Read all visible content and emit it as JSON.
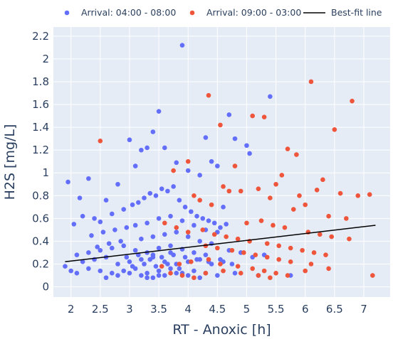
{
  "chart_data": {
    "type": "scatter",
    "title": "",
    "xlabel": "RT - Anoxic [h]",
    "ylabel": "H2S [mg/L]",
    "xlim": [
      1.7,
      7.45
    ],
    "ylim": [
      -0.09,
      2.28
    ],
    "x_ticks": [
      2,
      2.5,
      3,
      3.5,
      4,
      4.5,
      5,
      5.5,
      6,
      6.5,
      7
    ],
    "y_ticks": [
      0,
      0.2,
      0.4,
      0.6,
      0.8,
      1,
      1.2,
      1.4,
      1.6,
      1.8,
      2,
      2.2
    ],
    "grid": true,
    "legend_position": "top",
    "colors": {
      "series_a": "#636efa",
      "series_b": "#ef553b",
      "fit": "#000000",
      "plot_bg": "#e5ecf6",
      "grid": "#ffffff",
      "text": "#2a3f5f"
    },
    "series": [
      {
        "name": "Arrival: 04:00 - 08:00",
        "kind": "markers",
        "x": [
          3.9,
          3.5,
          4.7,
          5.4,
          4.3,
          3.0,
          3.3,
          3.2,
          3.6,
          4.4,
          4.5,
          4.8,
          3.4,
          1.95,
          2.3,
          3.8,
          3.1,
          4.0,
          2.6,
          2.8,
          5.0,
          4.2,
          5.05,
          4.6,
          2.05,
          2.15,
          2.2,
          2.4,
          2.5,
          2.7,
          2.9,
          3.05,
          3.15,
          3.25,
          3.35,
          3.45,
          3.55,
          3.65,
          3.75,
          3.85,
          3.95,
          4.05,
          4.15,
          4.25,
          4.35,
          4.45,
          4.55,
          4.65,
          2.35,
          2.55,
          2.75,
          2.95,
          3.1,
          3.3,
          3.5,
          3.7,
          3.9,
          4.1,
          4.3,
          4.5,
          2.45,
          2.65,
          2.85,
          3.2,
          3.4,
          3.6,
          3.8,
          4.0,
          4.2,
          4.4,
          2.1,
          2.3,
          2.5,
          2.7,
          2.9,
          3.1,
          3.3,
          3.5,
          3.7,
          3.9,
          4.1,
          4.3,
          4.7,
          4.9,
          5.1,
          5.3,
          2.2,
          2.4,
          2.6,
          2.8,
          3.0,
          3.2,
          3.4,
          3.6,
          3.8,
          4.0,
          4.2,
          4.4,
          4.6,
          1.9,
          2.0,
          2.1,
          2.3,
          2.5,
          2.7,
          2.9,
          3.1,
          3.3,
          3.5,
          3.7,
          3.9,
          4.1,
          4.3,
          4.5,
          4.8,
          5.2,
          5.75,
          2.6,
          2.8,
          3.0,
          3.2,
          3.4,
          3.6,
          3.8,
          4.0,
          4.2,
          3.05,
          3.25,
          3.45,
          3.65,
          3.85,
          2.95,
          3.15,
          3.35,
          3.55,
          3.75,
          3.95,
          4.15,
          4.35,
          4.55,
          4.75,
          3.5,
          3.3,
          3.7,
          3.4
        ],
        "y": [
          2.12,
          1.54,
          1.51,
          1.67,
          1.31,
          1.29,
          1.22,
          1.2,
          1.22,
          1.1,
          1.06,
          1.3,
          1.36,
          0.92,
          0.95,
          1.09,
          1.06,
          1.02,
          0.76,
          0.9,
          1.24,
          0.98,
          1.17,
          0.7,
          0.55,
          0.78,
          0.62,
          0.6,
          0.57,
          0.64,
          0.68,
          0.72,
          0.74,
          0.78,
          0.82,
          0.8,
          0.86,
          0.84,
          0.88,
          0.76,
          0.7,
          0.66,
          0.62,
          0.6,
          0.58,
          0.56,
          0.52,
          0.55,
          0.45,
          0.48,
          0.5,
          0.52,
          0.54,
          0.56,
          0.6,
          0.62,
          0.58,
          0.54,
          0.5,
          0.48,
          0.35,
          0.38,
          0.4,
          0.42,
          0.44,
          0.46,
          0.48,
          0.44,
          0.4,
          0.38,
          0.28,
          0.3,
          0.32,
          0.34,
          0.36,
          0.32,
          0.3,
          0.34,
          0.36,
          0.33,
          0.3,
          0.28,
          0.32,
          0.3,
          0.26,
          0.28,
          0.22,
          0.24,
          0.26,
          0.2,
          0.22,
          0.24,
          0.26,
          0.22,
          0.2,
          0.22,
          0.24,
          0.2,
          0.22,
          0.18,
          0.14,
          0.12,
          0.16,
          0.14,
          0.12,
          0.14,
          0.16,
          0.12,
          0.14,
          0.16,
          0.12,
          0.14,
          0.12,
          0.1,
          0.12,
          0.1,
          0.1,
          0.08,
          0.1,
          0.12,
          0.1,
          0.08,
          0.1,
          0.12,
          0.1,
          0.08,
          0.18,
          0.2,
          0.18,
          0.2,
          0.16,
          0.26,
          0.28,
          0.24,
          0.26,
          0.28,
          0.26,
          0.24,
          0.22,
          0.24,
          0.2,
          0.1,
          0.08,
          0.3,
          0.28
        ]
      },
      {
        "name": "Arrival: 09:00 - 03:00",
        "kind": "markers",
        "x": [
          6.1,
          6.8,
          6.5,
          4.35,
          5.1,
          5.3,
          4.55,
          5.7,
          5.85,
          2.5,
          4.0,
          3.75,
          4.8,
          5.6,
          6.3,
          5.5,
          6.2,
          6.6,
          6.9,
          7.1,
          7.15,
          5.9,
          6.0,
          4.9,
          5.2,
          5.4,
          5.8,
          6.4,
          6.7,
          4.6,
          4.7,
          4.1,
          4.2,
          4.4,
          5.0,
          5.25,
          5.45,
          5.65,
          6.05,
          6.25,
          6.45,
          6.75,
          4.25,
          4.45,
          4.65,
          4.85,
          5.05,
          5.35,
          5.55,
          5.75,
          5.95,
          6.15,
          6.35,
          3.6,
          3.8,
          4.0,
          4.3,
          4.5,
          4.75,
          4.95,
          5.15,
          5.35,
          5.55,
          5.75,
          6.1,
          3.55,
          3.85,
          4.05,
          4.35,
          4.55,
          4.85,
          5.1,
          5.3,
          5.5,
          5.7,
          3.7,
          3.9,
          4.1,
          4.3,
          4.6,
          4.9,
          5.2,
          5.4,
          6.0,
          6.4
        ],
        "y": [
          1.8,
          1.63,
          1.38,
          1.68,
          1.5,
          1.49,
          1.42,
          1.21,
          1.16,
          1.28,
          1.1,
          1.02,
          1.06,
          0.98,
          0.94,
          0.9,
          0.85,
          0.82,
          0.8,
          0.81,
          0.1,
          0.8,
          0.72,
          0.84,
          0.86,
          0.78,
          0.68,
          0.62,
          0.6,
          0.88,
          0.84,
          0.8,
          0.76,
          0.72,
          0.56,
          0.58,
          0.54,
          0.52,
          0.48,
          0.46,
          0.44,
          0.42,
          0.5,
          0.46,
          0.44,
          0.42,
          0.4,
          0.38,
          0.36,
          0.34,
          0.32,
          0.3,
          0.28,
          0.56,
          0.52,
          0.48,
          0.36,
          0.34,
          0.32,
          0.3,
          0.28,
          0.26,
          0.24,
          0.22,
          0.2,
          0.18,
          0.2,
          0.22,
          0.24,
          0.2,
          0.18,
          0.16,
          0.14,
          0.12,
          0.1,
          0.12,
          0.1,
          0.08,
          0.12,
          0.14,
          0.12,
          0.1,
          0.08,
          0.14,
          0.16
        ]
      },
      {
        "name": "Best-fit line",
        "kind": "line",
        "x": [
          1.9,
          7.2
        ],
        "y": [
          0.22,
          0.54
        ]
      }
    ]
  }
}
